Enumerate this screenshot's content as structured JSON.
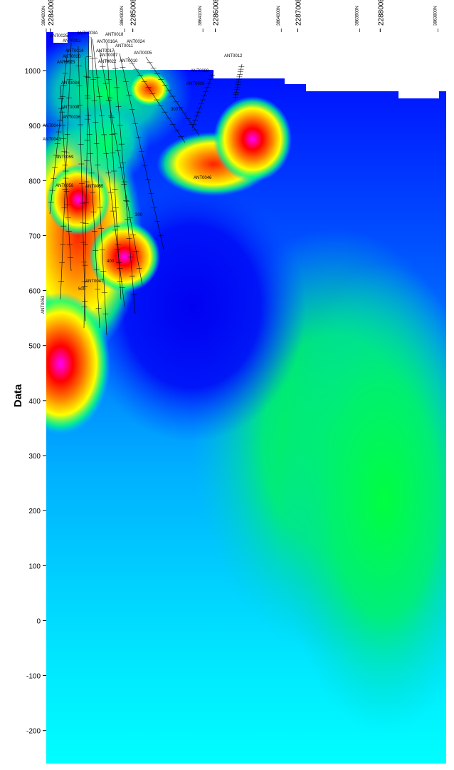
{
  "chart_data": {
    "type": "heatmap",
    "title": "",
    "ylabel": "Data",
    "xlabel": "",
    "ylim": [
      -260,
      1070
    ],
    "grid": false,
    "y_ticks": [
      1000,
      900,
      800,
      700,
      600,
      500,
      400,
      300,
      200,
      100,
      0,
      -100,
      -200
    ],
    "x_ticks_main": [
      {
        "label": "228400E",
        "x": 228400
      },
      {
        "label": "228500E",
        "x": 228500
      },
      {
        "label": "228600E",
        "x": 228600
      },
      {
        "label": "228700E",
        "x": 228700
      },
      {
        "label": "228800E",
        "x": 228800
      }
    ],
    "x_ticks_secondary": [
      {
        "label": "3864200N",
        "x": 228395
      },
      {
        "label": "3864300N",
        "x": 228490
      },
      {
        "label": "3864100N",
        "x": 228585
      },
      {
        "label": "3864000N",
        "x": 228680
      },
      {
        "label": "3863900N",
        "x": 228775
      },
      {
        "label": "3863800N",
        "x": 228870
      }
    ],
    "xlim": [
      228395,
      228880
    ],
    "colormap": [
      "#00ffff",
      "#0080ff",
      "#0000ff",
      "#00ff80",
      "#ffff00",
      "#ff8000",
      "#ff0000",
      "#ff00ff",
      "#ffb0ff"
    ],
    "hole_labels": [
      "ANT0025",
      "ANT0002",
      "ANT0003A",
      "ANT0018",
      "ANT0016A",
      "ANT0024",
      "ANT0014",
      "ANT0017",
      "ANT0011",
      "ANT0020",
      "ANT0007",
      "ANT0005",
      "ANT0023",
      "ANT0022",
      "ANT0010",
      "ANT0009",
      "ANT0006",
      "ANT0012",
      "ANT0034",
      "ANT0008",
      "ANT0036",
      "ANT0044",
      "ANT0043",
      "ANT0059",
      "ANT0058",
      "ANT0055",
      "ANT0046",
      "ANT0047",
      "ANT0053"
    ],
    "annotations": [
      "300",
      "300 m",
      "400",
      "500"
    ]
  }
}
